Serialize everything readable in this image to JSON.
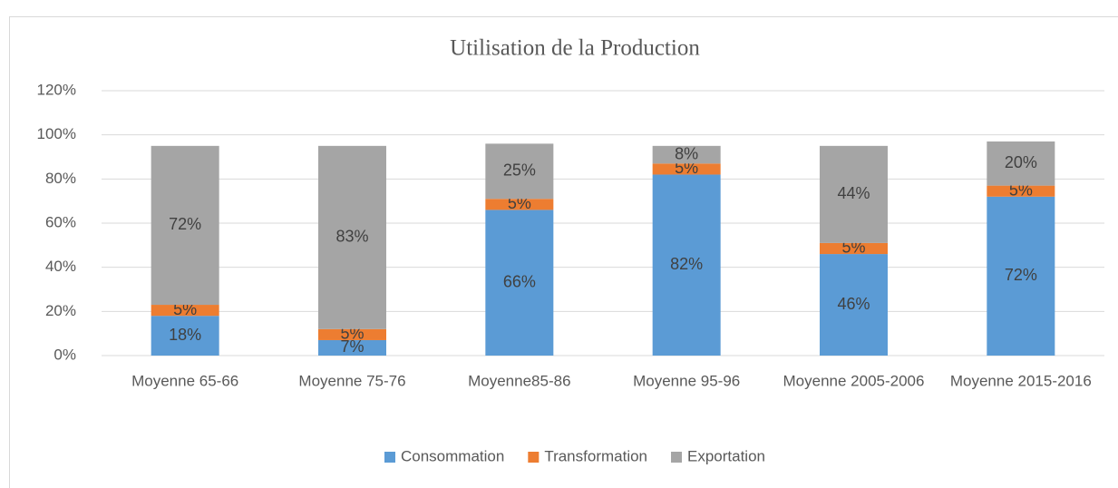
{
  "chart_data": {
    "type": "stacked_bar",
    "title": "Utilisation de la Production",
    "categories": [
      "Moyenne 65-66",
      "Moyenne 75-76",
      "Moyenne85-86",
      "Moyenne 95-96",
      "Moyenne 2005-2006",
      "Moyenne 2015-2016"
    ],
    "series": [
      {
        "name": "Consommation",
        "color": "#5b9bd5",
        "values": [
          18,
          7,
          66,
          82,
          46,
          72
        ],
        "value_labels": [
          "18%",
          "7%",
          "66%",
          "82%",
          "46%",
          "72%"
        ]
      },
      {
        "name": "Transformation",
        "color": "#ed7d31",
        "values": [
          5,
          5,
          5,
          5,
          5,
          5
        ],
        "value_labels": [
          "5%",
          "5%",
          "5%",
          "5%",
          "5%",
          "5%"
        ]
      },
      {
        "name": "Exportation",
        "color": "#a5a5a5",
        "values": [
          72,
          83,
          25,
          8,
          44,
          20
        ],
        "value_labels": [
          "72%",
          "83%",
          "25%",
          "8%",
          "44%",
          "20%"
        ]
      }
    ],
    "ylim": [
      0,
      120
    ],
    "yticks": [
      {
        "value": 0,
        "label": "0%"
      },
      {
        "value": 20,
        "label": "20%"
      },
      {
        "value": 40,
        "label": "40%"
      },
      {
        "value": 60,
        "label": "60%"
      },
      {
        "value": 80,
        "label": "80%"
      },
      {
        "value": 100,
        "label": "100%"
      },
      {
        "value": 120,
        "label": "120%"
      }
    ],
    "grid": true,
    "legend": "bottom"
  }
}
